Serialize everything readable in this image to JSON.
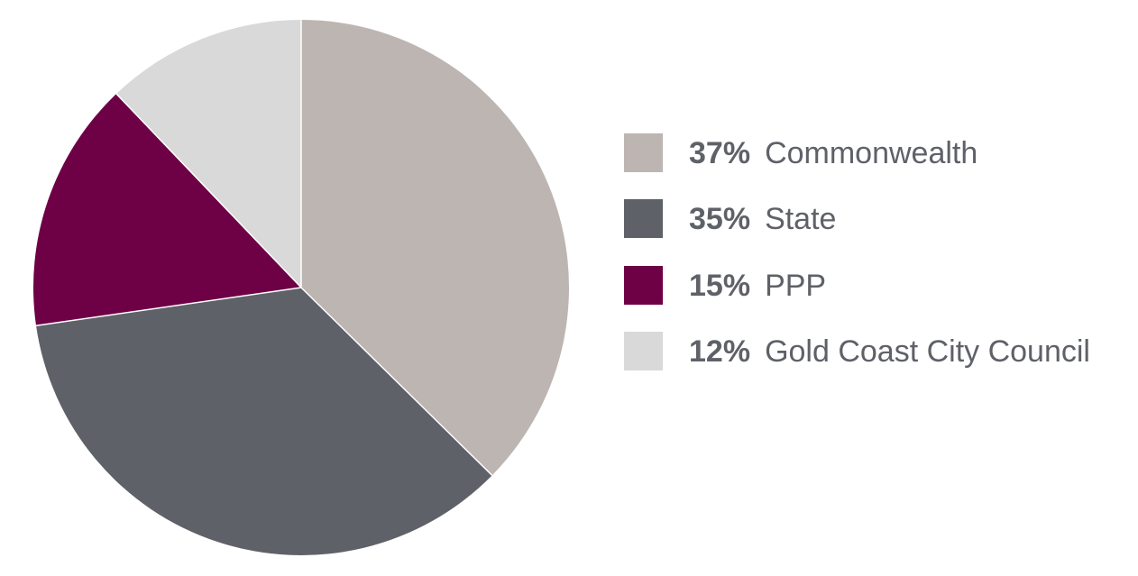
{
  "chart_data": {
    "type": "pie",
    "title": "",
    "slices": [
      {
        "pct_label": "37%",
        "value": 37,
        "label": "Commonwealth",
        "color": "#bdb5b2"
      },
      {
        "pct_label": "35%",
        "value": 35,
        "label": "State",
        "color": "#5f6168"
      },
      {
        "pct_label": "15%",
        "value": 15,
        "label": "PPP",
        "color": "#6e0046"
      },
      {
        "pct_label": "12%",
        "value": 12,
        "label": "Gold Coast City Council",
        "color": "#d9d9d9"
      }
    ],
    "start_angle": "12 o'clock",
    "direction": "clockwise",
    "legend_placement": "right"
  }
}
